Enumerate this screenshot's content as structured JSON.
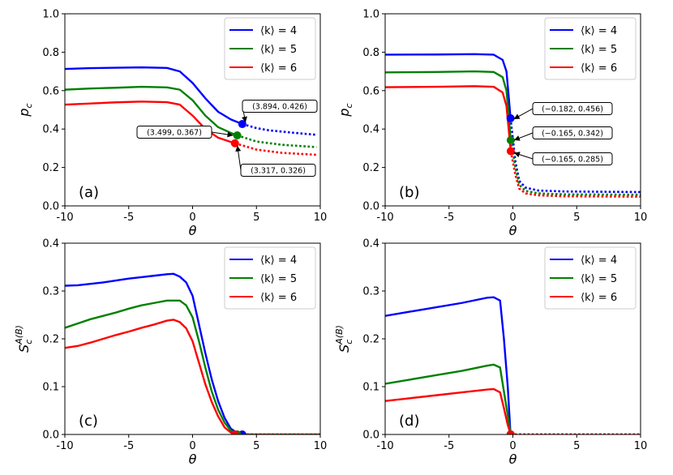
{
  "legend_entries": [
    {
      "label": "⟨k⟩ = 4",
      "color": "#0000ff"
    },
    {
      "label": "⟨k⟩ = 5",
      "color": "#008000"
    },
    {
      "label": "⟨k⟩ = 6",
      "color": "#ff0000"
    }
  ],
  "chart_data": [
    {
      "id": "a",
      "type": "line",
      "panel_label": "(a)",
      "xlabel": "θ",
      "ylabel": "p_c",
      "xlim": [
        -10,
        10
      ],
      "ylim": [
        0,
        1
      ],
      "xticks": [
        -10,
        -5,
        0,
        5,
        10
      ],
      "xtick_labels": [
        "-10",
        "-5",
        "0",
        "5",
        "10"
      ],
      "yticks": [
        0,
        0.2,
        0.4,
        0.6,
        0.8,
        1.0
      ],
      "ytick_labels": [
        "0.0",
        "0.2",
        "0.4",
        "0.6",
        "0.8",
        "1.0"
      ],
      "legend_position": "top-right",
      "series": [
        {
          "name": "⟨k⟩ = 4",
          "color": "#0000ff",
          "solid": [
            [
              -10,
              0.713
            ],
            [
              -8,
              0.717
            ],
            [
              -6,
              0.719
            ],
            [
              -4,
              0.721
            ],
            [
              -2,
              0.718
            ],
            [
              -1,
              0.7
            ],
            [
              0,
              0.64
            ],
            [
              1,
              0.56
            ],
            [
              2,
              0.49
            ],
            [
              3,
              0.45
            ],
            [
              3.894,
              0.426
            ]
          ],
          "dotted": [
            [
              3.894,
              0.426
            ],
            [
              5,
              0.405
            ],
            [
              6,
              0.393
            ],
            [
              8,
              0.38
            ],
            [
              9.7,
              0.37
            ]
          ],
          "marker": [
            3.894,
            0.426
          ]
        },
        {
          "name": "⟨k⟩ = 5",
          "color": "#008000",
          "solid": [
            [
              -10,
              0.605
            ],
            [
              -8,
              0.611
            ],
            [
              -6,
              0.615
            ],
            [
              -4,
              0.62
            ],
            [
              -2,
              0.617
            ],
            [
              -1,
              0.605
            ],
            [
              0,
              0.55
            ],
            [
              1,
              0.47
            ],
            [
              2,
              0.41
            ],
            [
              3,
              0.38
            ],
            [
              3.499,
              0.367
            ]
          ],
          "dotted": [
            [
              3.499,
              0.367
            ],
            [
              5,
              0.335
            ],
            [
              7,
              0.318
            ],
            [
              9.7,
              0.306
            ]
          ],
          "marker": [
            3.499,
            0.367
          ]
        },
        {
          "name": "⟨k⟩ = 6",
          "color": "#ff0000",
          "solid": [
            [
              -10,
              0.527
            ],
            [
              -8,
              0.533
            ],
            [
              -6,
              0.539
            ],
            [
              -4,
              0.543
            ],
            [
              -2,
              0.54
            ],
            [
              -1,
              0.527
            ],
            [
              0,
              0.47
            ],
            [
              1,
              0.4
            ],
            [
              2,
              0.355
            ],
            [
              3,
              0.333
            ],
            [
              3.317,
              0.326
            ]
          ],
          "dotted": [
            [
              3.317,
              0.326
            ],
            [
              5,
              0.293
            ],
            [
              7,
              0.276
            ],
            [
              9.7,
              0.266
            ]
          ],
          "marker": [
            3.317,
            0.326
          ]
        }
      ],
      "annotations": [
        {
          "text": "(3.894, 0.426)",
          "series": 0
        },
        {
          "text": "(3.499, 0.367)",
          "series": 1
        },
        {
          "text": "(3.317, 0.326)",
          "series": 2
        }
      ]
    },
    {
      "id": "b",
      "type": "line",
      "panel_label": "(b)",
      "xlabel": "θ",
      "ylabel": "p_c",
      "xlim": [
        -10,
        10
      ],
      "ylim": [
        0,
        1
      ],
      "xticks": [
        -10,
        -5,
        0,
        5,
        10
      ],
      "xtick_labels": [
        "-10",
        "-5",
        "0",
        "5",
        "10"
      ],
      "yticks": [
        0,
        0.2,
        0.4,
        0.6,
        0.8,
        1.0
      ],
      "ytick_labels": [
        "0.0",
        "0.2",
        "0.4",
        "0.6",
        "0.8",
        "1.0"
      ],
      "legend_position": "top-right",
      "series": [
        {
          "name": "⟨k⟩ = 4",
          "color": "#0000ff",
          "solid": [
            [
              -10,
              0.787
            ],
            [
              -6,
              0.788
            ],
            [
              -3,
              0.79
            ],
            [
              -1.5,
              0.787
            ],
            [
              -0.8,
              0.76
            ],
            [
              -0.5,
              0.7
            ],
            [
              -0.3,
              0.55
            ],
            [
              -0.182,
              0.456
            ]
          ],
          "dotted": [
            [
              -0.182,
              0.456
            ],
            [
              0,
              0.35
            ],
            [
              0.2,
              0.23
            ],
            [
              0.5,
              0.13
            ],
            [
              1,
              0.095
            ],
            [
              2,
              0.08
            ],
            [
              4,
              0.075
            ],
            [
              10,
              0.072
            ]
          ],
          "marker": [
            -0.182,
            0.456
          ]
        },
        {
          "name": "⟨k⟩ = 5",
          "color": "#008000",
          "solid": [
            [
              -10,
              0.695
            ],
            [
              -6,
              0.697
            ],
            [
              -3,
              0.7
            ],
            [
              -1.5,
              0.697
            ],
            [
              -0.8,
              0.67
            ],
            [
              -0.5,
              0.6
            ],
            [
              -0.3,
              0.45
            ],
            [
              -0.165,
              0.342
            ]
          ],
          "dotted": [
            [
              -0.165,
              0.342
            ],
            [
              0,
              0.28
            ],
            [
              0.2,
              0.2
            ],
            [
              0.5,
              0.11
            ],
            [
              1,
              0.078
            ],
            [
              2,
              0.065
            ],
            [
              4,
              0.06
            ],
            [
              10,
              0.058
            ]
          ],
          "marker": [
            -0.165,
            0.342
          ]
        },
        {
          "name": "⟨k⟩ = 6",
          "color": "#ff0000",
          "solid": [
            [
              -10,
              0.618
            ],
            [
              -6,
              0.62
            ],
            [
              -3,
              0.623
            ],
            [
              -1.5,
              0.62
            ],
            [
              -0.8,
              0.59
            ],
            [
              -0.5,
              0.52
            ],
            [
              -0.3,
              0.38
            ],
            [
              -0.165,
              0.285
            ]
          ],
          "dotted": [
            [
              -0.165,
              0.285
            ],
            [
              0,
              0.23
            ],
            [
              0.2,
              0.16
            ],
            [
              0.5,
              0.09
            ],
            [
              1,
              0.065
            ],
            [
              2,
              0.055
            ],
            [
              4,
              0.05
            ],
            [
              10,
              0.048
            ]
          ],
          "marker": [
            -0.165,
            0.285
          ]
        }
      ],
      "annotations": [
        {
          "text": "(−0.182, 0.456)",
          "series": 0
        },
        {
          "text": "(−0.165, 0.342)",
          "series": 1
        },
        {
          "text": "(−0.165, 0.285)",
          "series": 2
        }
      ]
    },
    {
      "id": "c",
      "type": "line",
      "panel_label": "(c)",
      "xlabel": "θ",
      "ylabel": "S_c^{A(B)}",
      "xlim": [
        -10,
        10
      ],
      "ylim": [
        0,
        0.4
      ],
      "xticks": [
        -10,
        -5,
        0,
        5,
        10
      ],
      "xtick_labels": [
        "-10",
        "-5",
        "0",
        "5",
        "10"
      ],
      "yticks": [
        0,
        0.1,
        0.2,
        0.3,
        0.4
      ],
      "ytick_labels": [
        "0.0",
        "0.1",
        "0.2",
        "0.3",
        "0.4"
      ],
      "legend_position": "top-right",
      "series": [
        {
          "name": "⟨k⟩ = 4",
          "color": "#0000ff",
          "solid": [
            [
              -10,
              0.311
            ],
            [
              -9,
              0.312
            ],
            [
              -8,
              0.315
            ],
            [
              -7,
              0.318
            ],
            [
              -6,
              0.322
            ],
            [
              -5,
              0.326
            ],
            [
              -4,
              0.329
            ],
            [
              -3,
              0.332
            ],
            [
              -2,
              0.335
            ],
            [
              -1.5,
              0.336
            ],
            [
              -1,
              0.33
            ],
            [
              -0.5,
              0.318
            ],
            [
              0,
              0.29
            ],
            [
              0.5,
              0.23
            ],
            [
              1,
              0.17
            ],
            [
              1.5,
              0.115
            ],
            [
              2,
              0.07
            ],
            [
              2.5,
              0.035
            ],
            [
              3,
              0.012
            ],
            [
              3.5,
              0.003
            ],
            [
              3.894,
              0
            ]
          ],
          "dotted": [
            [
              3.894,
              0
            ],
            [
              10,
              0
            ]
          ],
          "marker": [
            3.894,
            0
          ]
        },
        {
          "name": "⟨k⟩ = 5",
          "color": "#008000",
          "solid": [
            [
              -10,
              0.223
            ],
            [
              -9,
              0.232
            ],
            [
              -8,
              0.241
            ],
            [
              -7,
              0.248
            ],
            [
              -6,
              0.255
            ],
            [
              -5,
              0.263
            ],
            [
              -4,
              0.27
            ],
            [
              -3,
              0.275
            ],
            [
              -2,
              0.28
            ],
            [
              -1,
              0.28
            ],
            [
              -0.5,
              0.27
            ],
            [
              0,
              0.245
            ],
            [
              0.5,
              0.195
            ],
            [
              1,
              0.14
            ],
            [
              1.5,
              0.09
            ],
            [
              2,
              0.052
            ],
            [
              2.5,
              0.025
            ],
            [
              3,
              0.008
            ],
            [
              3.499,
              0
            ]
          ],
          "dotted": [
            [
              3.499,
              0
            ],
            [
              10,
              0
            ]
          ],
          "marker": [
            3.499,
            0
          ]
        },
        {
          "name": "⟨k⟩ = 6",
          "color": "#ff0000",
          "solid": [
            [
              -10,
              0.181
            ],
            [
              -9,
              0.185
            ],
            [
              -8,
              0.192
            ],
            [
              -7,
              0.2
            ],
            [
              -6,
              0.208
            ],
            [
              -5,
              0.215
            ],
            [
              -4,
              0.223
            ],
            [
              -3,
              0.23
            ],
            [
              -2,
              0.238
            ],
            [
              -1.5,
              0.24
            ],
            [
              -1,
              0.235
            ],
            [
              -0.5,
              0.222
            ],
            [
              0,
              0.195
            ],
            [
              0.5,
              0.15
            ],
            [
              1,
              0.105
            ],
            [
              1.5,
              0.068
            ],
            [
              2,
              0.038
            ],
            [
              2.5,
              0.015
            ],
            [
              3,
              0.004
            ],
            [
              3.317,
              0
            ]
          ],
          "dotted": [
            [
              3.317,
              0
            ],
            [
              10,
              0
            ]
          ],
          "marker": [
            3.317,
            0
          ]
        }
      ],
      "annotations": []
    },
    {
      "id": "d",
      "type": "line",
      "panel_label": "(d)",
      "xlabel": "θ",
      "ylabel": "S_c^{A(B)}",
      "xlim": [
        -10,
        10
      ],
      "ylim": [
        0,
        0.4
      ],
      "xticks": [
        -10,
        -5,
        0,
        5,
        10
      ],
      "xtick_labels": [
        "-10",
        "-5",
        "0",
        "5",
        "10"
      ],
      "yticks": [
        0,
        0.1,
        0.2,
        0.3,
        0.4
      ],
      "ytick_labels": [
        "0.0",
        "0.1",
        "0.2",
        "0.3",
        "0.4"
      ],
      "legend_position": "top-right",
      "series": [
        {
          "name": "⟨k⟩ = 4",
          "color": "#0000ff",
          "solid": [
            [
              -10,
              0.248
            ],
            [
              -8,
              0.257
            ],
            [
              -6,
              0.266
            ],
            [
              -4,
              0.275
            ],
            [
              -2,
              0.286
            ],
            [
              -1.5,
              0.287
            ],
            [
              -1,
              0.28
            ],
            [
              -0.7,
              0.2
            ],
            [
              -0.4,
              0.1
            ],
            [
              -0.182,
              0
            ]
          ],
          "dotted": [
            [
              -0.182,
              0
            ],
            [
              10,
              0
            ]
          ],
          "marker": [
            -0.182,
            0
          ]
        },
        {
          "name": "⟨k⟩ = 5",
          "color": "#008000",
          "solid": [
            [
              -10,
              0.106
            ],
            [
              -8,
              0.115
            ],
            [
              -6,
              0.124
            ],
            [
              -4,
              0.133
            ],
            [
              -2,
              0.144
            ],
            [
              -1.5,
              0.146
            ],
            [
              -1,
              0.14
            ],
            [
              -0.7,
              0.09
            ],
            [
              -0.4,
              0.04
            ],
            [
              -0.165,
              0
            ]
          ],
          "dotted": [
            [
              -0.165,
              0
            ],
            [
              10,
              0
            ]
          ],
          "marker": [
            -0.165,
            0
          ]
        },
        {
          "name": "⟨k⟩ = 6",
          "color": "#ff0000",
          "solid": [
            [
              -10,
              0.07
            ],
            [
              -8,
              0.076
            ],
            [
              -6,
              0.082
            ],
            [
              -4,
              0.088
            ],
            [
              -2,
              0.094
            ],
            [
              -1.5,
              0.095
            ],
            [
              -1,
              0.088
            ],
            [
              -0.7,
              0.055
            ],
            [
              -0.4,
              0.02
            ],
            [
              -0.165,
              0
            ]
          ],
          "dotted": [
            [
              -0.165,
              0
            ],
            [
              10,
              0
            ]
          ],
          "marker": [
            -0.165,
            0
          ]
        }
      ],
      "annotations": []
    }
  ]
}
